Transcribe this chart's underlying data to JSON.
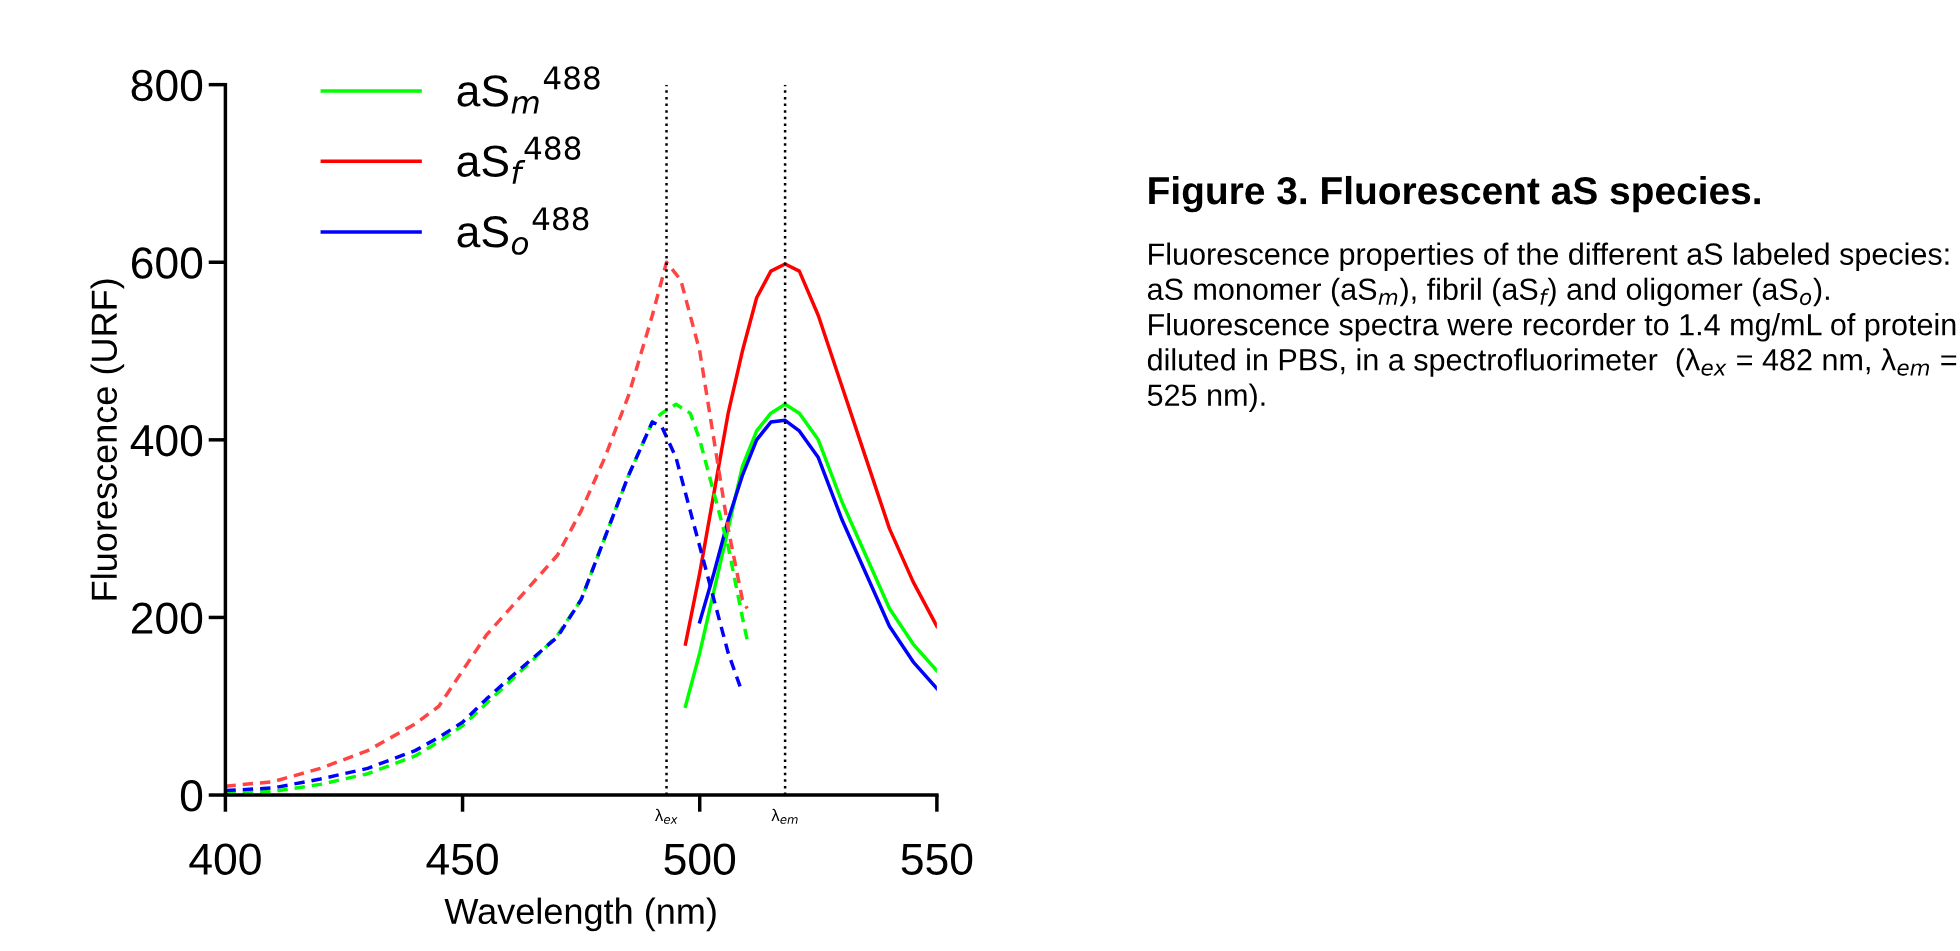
{
  "chart_data": {
    "type": "line",
    "title": "Figure 3. Fluorescent aS species.",
    "annotations": [
      "Fluorescence properties of the different aS labeled species: aS monomer (aS$_{m}$), fibril (aS$_{f}$) and oligomer (aS$_{o}$). Fluorescence spectra were recorder to 1.4 mg/mL of protein diluted in PBS, in a spectrofluorimeter  (λ$_{ex}$ = 482 nm, λ$_{em}$ = 525 nm)."
    ],
    "xlabel": "Wavelength (nm)",
    "ylabel": "Fluorescence (URF)",
    "xlim": [
      400,
      550
    ],
    "xticks": [
      400,
      450,
      500,
      550
    ],
    "ylim": [
      0,
      800
    ],
    "yticks": [
      0,
      200,
      400,
      600,
      800
    ],
    "grid": false,
    "legend": "top left",
    "marker": "none",
    "ref_lines": [
      {
        "axis": "x",
        "value": 493,
        "label": "λ$_{ex}$",
        "color": "#000000",
        "line_style": "dotted"
      },
      {
        "axis": "x",
        "value": 518,
        "label": "λ$_{em}$",
        "color": "#000000",
        "line_style": "dotted"
      }
    ],
    "series": [
      {
        "name": "aS$_{m}$$^{488}$",
        "color": "#00ff00",
        "line_style": "solid",
        "x": [
          497,
          500,
          503,
          506,
          509,
          512,
          515,
          518,
          521,
          525,
          530,
          535,
          540,
          545,
          550
        ],
        "values": [
          100,
          160,
          230,
          300,
          370,
          410,
          430,
          440,
          430,
          400,
          330,
          270,
          210,
          170,
          140
        ]
      },
      {
        "name": "aS$_{f}$$^{488}$",
        "color": "#ff0000",
        "line_style": "solid",
        "x": [
          497,
          500,
          503,
          506,
          509,
          512,
          515,
          518,
          521,
          525,
          530,
          535,
          540,
          545,
          550
        ],
        "values": [
          170,
          250,
          340,
          430,
          500,
          560,
          590,
          598,
          590,
          540,
          460,
          380,
          300,
          240,
          190
        ]
      },
      {
        "name": "aS$_{o}$$^{488}$",
        "color": "#0000ff",
        "line_style": "solid",
        "x": [
          500,
          503,
          506,
          509,
          512,
          515,
          518,
          521,
          525,
          530,
          535,
          540,
          545,
          550
        ],
        "values": [
          195,
          250,
          310,
          360,
          400,
          420,
          422,
          410,
          380,
          310,
          250,
          190,
          150,
          120
        ]
      },
      {
        "color": "#00ff00",
        "line_style": "dashed",
        "x": [
          400,
          410,
          420,
          430,
          440,
          445,
          450,
          455,
          460,
          465,
          470,
          475,
          480,
          485,
          490,
          492,
          495,
          498,
          500,
          503,
          506,
          509,
          510
        ],
        "values": [
          2,
          4,
          12,
          24,
          44,
          60,
          78,
          103,
          128,
          153,
          180,
          220,
          290,
          360,
          420,
          430,
          440,
          430,
          400,
          340,
          280,
          200,
          175
        ]
      },
      {
        "color": "#ff4444",
        "line_style": "dashed",
        "x": [
          400,
          410,
          420,
          430,
          440,
          445,
          450,
          455,
          460,
          465,
          470,
          475,
          480,
          485,
          490,
          493,
          496,
          500,
          503,
          506,
          509,
          510
        ],
        "values": [
          10,
          15,
          30,
          50,
          80,
          100,
          140,
          180,
          210,
          240,
          270,
          320,
          380,
          450,
          540,
          600,
          580,
          500,
          400,
          300,
          220,
          210
        ]
      },
      {
        "color": "#0000ff",
        "line_style": "dashed",
        "x": [
          400,
          410,
          420,
          430,
          440,
          445,
          450,
          455,
          460,
          465,
          470,
          475,
          480,
          485,
          490,
          492,
          495,
          498,
          500,
          503,
          506,
          509
        ],
        "values": [
          5,
          8,
          18,
          30,
          50,
          65,
          82,
          108,
          132,
          155,
          178,
          220,
          290,
          360,
          420,
          415,
          380,
          320,
          280,
          220,
          160,
          115
        ]
      }
    ]
  }
}
